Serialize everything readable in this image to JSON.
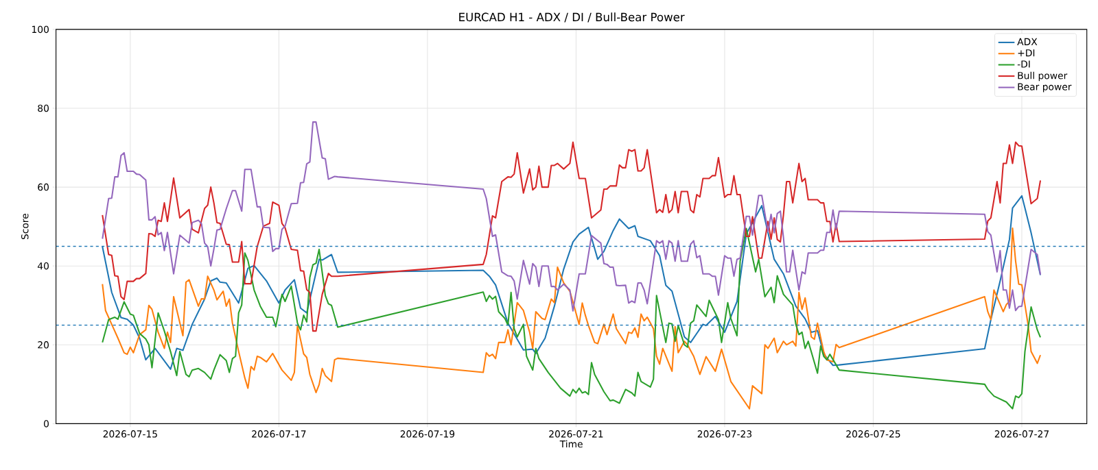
{
  "chart_data": {
    "type": "line",
    "title": "EURCAD H1 - ADX / DI / Bull-Bear Power",
    "xlabel": "Time",
    "ylabel": "Score",
    "xlim": [
      "2026-07-14T00:00",
      "2026-07-27T21:00"
    ],
    "xticks": [
      "2026-07-15",
      "2026-07-17",
      "2026-07-19",
      "2026-07-21",
      "2026-07-23",
      "2026-07-25",
      "2026-07-27"
    ],
    "ylim": [
      0,
      100
    ],
    "yticks": [
      0,
      20,
      40,
      60,
      80,
      100
    ],
    "grid": true,
    "legend": "top right",
    "ref_lines": [
      {
        "axis": "y",
        "value": 45,
        "color": "#1f77b4",
        "line_style": "dashed"
      },
      {
        "axis": "y",
        "value": 25,
        "color": "#1f77b4",
        "line_style": "dashed"
      }
    ],
    "series": [
      {
        "name": "ADX",
        "color": "#1f77b4",
        "x": [
          "2026-07-14T15:00",
          "2026-07-14T18:00",
          "2026-07-14T21:00",
          "2026-07-14T23:00",
          "2026-07-15T01:00",
          "2026-07-15T03:00",
          "2026-07-15T05:00",
          "2026-07-15T08:00",
          "2026-07-15T13:00",
          "2026-07-15T15:00",
          "2026-07-15T17:00",
          "2026-07-15T20:00",
          "2026-07-16T00:00",
          "2026-07-16T02:00",
          "2026-07-16T04:00",
          "2026-07-16T05:00",
          "2026-07-16T07:00",
          "2026-07-16T11:00",
          "2026-07-16T14:00",
          "2026-07-16T16:00",
          "2026-07-16T20:00",
          "2026-07-17T00:00",
          "2026-07-17T02:00",
          "2026-07-17T05:00",
          "2026-07-17T07:00",
          "2026-07-17T09:00",
          "2026-07-17T13:00",
          "2026-07-17T14:00",
          "2026-07-17T17:00",
          "2026-07-17T19:00",
          "2026-07-19T18:00",
          "2026-07-19T20:00",
          "2026-07-19T22:00",
          "2026-07-20T02:00",
          "2026-07-20T07:00",
          "2026-07-20T10:00",
          "2026-07-20T11:00",
          "2026-07-20T14:00",
          "2026-07-20T17:00",
          "2026-07-20T20:00",
          "2026-07-20T23:00",
          "2026-07-21T01:00",
          "2026-07-21T04:00",
          "2026-07-21T07:00",
          "2026-07-21T09:00",
          "2026-07-21T12:00",
          "2026-07-21T14:00",
          "2026-07-21T17:00",
          "2026-07-21T19:00",
          "2026-07-21T20:00",
          "2026-07-22T00:00",
          "2026-07-22T03:00",
          "2026-07-22T05:00",
          "2026-07-22T07:00",
          "2026-07-22T11:00",
          "2026-07-22T13:00",
          "2026-07-22T17:00",
          "2026-07-22T18:00",
          "2026-07-22T21:00",
          "2026-07-23T00:00",
          "2026-07-23T04:00",
          "2026-07-23T07:00",
          "2026-07-23T12:00",
          "2026-07-23T16:00",
          "2026-07-23T19:00",
          "2026-07-23T23:00",
          "2026-07-24T02:00",
          "2026-07-24T04:00",
          "2026-07-24T06:00",
          "2026-07-24T08:00",
          "2026-07-24T11:00",
          "2026-07-24T13:00",
          "2026-07-26T12:00",
          "2026-07-26T14:00",
          "2026-07-26T17:00",
          "2026-07-26T20:00",
          "2026-07-26T21:00",
          "2026-07-27T00:00",
          "2026-07-27T01:00",
          "2026-07-27T03:00",
          "2026-07-27T06:00"
        ],
        "values": [
          44.9,
          33.3,
          26.9,
          26.5,
          25.0,
          21.7,
          16.2,
          19.1,
          13.8,
          19.1,
          18.6,
          25.2,
          31.6,
          36.2,
          36.9,
          35.9,
          35.7,
          30.6,
          39.4,
          40.1,
          36.2,
          30.6,
          33.9,
          36.5,
          29.3,
          28.1,
          41.7,
          41.5,
          42.9,
          38.4,
          38.9,
          37.4,
          35.2,
          25.5,
          18.7,
          18.9,
          17.8,
          21.7,
          29.8,
          39.2,
          46.1,
          48.1,
          49.8,
          41.7,
          43.7,
          49.0,
          51.9,
          49.5,
          50.2,
          47.5,
          46.4,
          42.6,
          35.1,
          33.6,
          22.0,
          20.6,
          25.2,
          24.9,
          27.2,
          23.2,
          31.0,
          48.1,
          55.3,
          41.7,
          38.0,
          29.8,
          26.6,
          23.2,
          23.6,
          17.7,
          14.8,
          14.9,
          19.0,
          26.4,
          36.2,
          46.7,
          54.7,
          57.8,
          54.7,
          48.4,
          37.7
        ]
      },
      {
        "name": "+DI",
        "color": "#ff7f0e",
        "x": [
          "2026-07-14T15:00",
          "2026-07-14T16:00",
          "2026-07-14T18:00",
          "2026-07-14T20:00",
          "2026-07-14T22:00",
          "2026-07-14T23:00",
          "2026-07-15T00:00",
          "2026-07-15T01:00",
          "2026-07-15T03:00",
          "2026-07-15T05:00",
          "2026-07-15T06:00",
          "2026-07-15T07:00",
          "2026-07-15T09:00",
          "2026-07-15T11:00",
          "2026-07-15T12:00",
          "2026-07-15T13:00",
          "2026-07-15T14:00",
          "2026-07-15T17:00",
          "2026-07-15T18:00",
          "2026-07-15T19:00",
          "2026-07-15T22:00",
          "2026-07-15T23:00",
          "2026-07-16T00:00",
          "2026-07-16T01:00",
          "2026-07-16T03:00",
          "2026-07-16T04:00",
          "2026-07-16T06:00",
          "2026-07-16T07:00",
          "2026-07-16T08:00",
          "2026-07-16T09:00",
          "2026-07-16T11:00",
          "2026-07-16T13:00",
          "2026-07-16T14:00",
          "2026-07-16T15:00",
          "2026-07-16T16:00",
          "2026-07-16T17:00",
          "2026-07-16T18:00",
          "2026-07-16T20:00",
          "2026-07-16T22:00",
          "2026-07-17T01:00",
          "2026-07-17T04:00",
          "2026-07-17T05:00",
          "2026-07-17T06:00",
          "2026-07-17T08:00",
          "2026-07-17T09:00",
          "2026-07-17T10:00",
          "2026-07-17T12:00",
          "2026-07-17T13:00",
          "2026-07-17T14:00",
          "2026-07-17T15:00",
          "2026-07-17T17:00",
          "2026-07-17T18:00",
          "2026-07-17T19:00",
          "2026-07-19T18:00",
          "2026-07-19T19:00",
          "2026-07-19T20:00",
          "2026-07-19T21:00",
          "2026-07-19T22:00",
          "2026-07-19T23:00",
          "2026-07-20T01:00",
          "2026-07-20T02:00",
          "2026-07-20T03:00",
          "2026-07-20T05:00",
          "2026-07-20T07:00",
          "2026-07-20T09:00",
          "2026-07-20T10:00",
          "2026-07-20T11:00",
          "2026-07-20T13:00",
          "2026-07-20T14:00",
          "2026-07-20T16:00",
          "2026-07-20T17:00",
          "2026-07-20T18:00",
          "2026-07-20T20:00",
          "2026-07-20T22:00",
          "2026-07-21T01:00",
          "2026-07-21T02:00",
          "2026-07-21T03:00",
          "2026-07-21T04:00",
          "2026-07-21T06:00",
          "2026-07-21T07:00",
          "2026-07-21T09:00",
          "2026-07-21T10:00",
          "2026-07-21T12:00",
          "2026-07-21T13:00",
          "2026-07-21T16:00",
          "2026-07-21T17:00",
          "2026-07-21T18:00",
          "2026-07-21T19:00",
          "2026-07-21T20:00",
          "2026-07-21T21:00",
          "2026-07-21T22:00",
          "2026-07-21T23:00",
          "2026-07-22T01:00",
          "2026-07-22T02:00",
          "2026-07-22T03:00",
          "2026-07-22T04:00",
          "2026-07-22T07:00",
          "2026-07-22T08:00",
          "2026-07-22T09:00",
          "2026-07-22T11:00",
          "2026-07-22T12:00",
          "2026-07-22T14:00",
          "2026-07-22T16:00",
          "2026-07-22T18:00",
          "2026-07-22T21:00",
          "2026-07-22T23:00",
          "2026-07-23T02:00",
          "2026-07-23T04:00",
          "2026-07-23T08:00",
          "2026-07-23T09:00",
          "2026-07-23T12:00",
          "2026-07-23T13:00",
          "2026-07-23T14:00",
          "2026-07-23T16:00",
          "2026-07-23T17:00",
          "2026-07-23T19:00",
          "2026-07-23T20:00",
          "2026-07-23T22:00",
          "2026-07-23T23:00",
          "2026-07-24T00:00",
          "2026-07-24T01:00",
          "2026-07-24T02:00",
          "2026-07-24T04:00",
          "2026-07-24T05:00",
          "2026-07-24T06:00",
          "2026-07-24T08:00",
          "2026-07-24T09:00",
          "2026-07-24T11:00",
          "2026-07-24T12:00",
          "2026-07-24T13:00",
          "2026-07-26T12:00",
          "2026-07-26T13:00",
          "2026-07-26T14:00",
          "2026-07-26T15:00",
          "2026-07-26T18:00",
          "2026-07-26T19:00",
          "2026-07-26T20:00",
          "2026-07-26T21:00",
          "2026-07-26T22:00",
          "2026-07-26T23:00",
          "2026-07-27T00:00",
          "2026-07-27T02:00",
          "2026-07-27T03:00",
          "2026-07-27T05:00",
          "2026-07-27T06:00"
        ],
        "values": [
          35.4,
          28.7,
          25.2,
          21.7,
          18.0,
          17.6,
          19.4,
          18.0,
          22.6,
          23.8,
          30.0,
          29.0,
          23.2,
          19.1,
          23.2,
          20.6,
          32.2,
          22.3,
          35.9,
          36.5,
          29.8,
          31.7,
          31.6,
          37.4,
          33.9,
          31.4,
          33.6,
          29.8,
          31.6,
          25.5,
          18.3,
          11.6,
          9.0,
          14.5,
          13.6,
          17.1,
          16.8,
          15.7,
          17.8,
          13.6,
          11.0,
          13.0,
          24.9,
          17.7,
          16.8,
          12.5,
          7.9,
          9.9,
          14.0,
          12.2,
          10.7,
          16.2,
          16.6,
          13.0,
          18.0,
          17.1,
          17.6,
          16.5,
          20.6,
          20.6,
          23.8,
          20.0,
          30.7,
          28.7,
          23.2,
          19.1,
          28.4,
          26.7,
          26.4,
          31.6,
          30.7,
          39.7,
          35.7,
          33.6,
          25.2,
          30.6,
          27.5,
          24.9,
          20.6,
          20.3,
          25.2,
          22.6,
          27.8,
          24.1,
          20.3,
          23.2,
          22.9,
          24.3,
          21.9,
          27.8,
          26.1,
          27.0,
          24.1,
          17.1,
          15.1,
          19.1,
          13.3,
          24.6,
          18.0,
          20.9,
          20.0,
          17.1,
          12.5,
          17.0,
          13.3,
          18.9,
          10.7,
          8.4,
          3.8,
          9.6,
          7.6,
          20.0,
          19.1,
          21.7,
          18.0,
          20.9,
          20.0,
          20.9,
          19.7,
          33.3,
          29.0,
          31.9,
          22.0,
          21.4,
          25.5,
          18.3,
          16.2,
          15.7,
          20.1,
          19.3,
          32.2,
          28.4,
          26.4,
          33.9,
          28.4,
          30.2,
          31.0,
          49.6,
          41.2,
          35.4,
          35.2,
          25.2,
          18.3,
          15.3,
          17.4
        ]
      },
      {
        "name": "-DI",
        "color": "#2ca02c",
        "x": [
          "2026-07-14T15:00",
          "2026-07-14T17:00",
          "2026-07-14T19:00",
          "2026-07-14T20:00",
          "2026-07-14T22:00",
          "2026-07-15T00:00",
          "2026-07-15T01:00",
          "2026-07-15T03:00",
          "2026-07-15T05:00",
          "2026-07-15T06:00",
          "2026-07-15T07:00",
          "2026-07-15T09:00",
          "2026-07-15T11:00",
          "2026-07-15T13:00",
          "2026-07-15T15:00",
          "2026-07-15T16:00",
          "2026-07-15T18:00",
          "2026-07-15T19:00",
          "2026-07-15T20:00",
          "2026-07-15T22:00",
          "2026-07-16T00:00",
          "2026-07-16T02:00",
          "2026-07-16T03:00",
          "2026-07-16T05:00",
          "2026-07-16T07:00",
          "2026-07-16T08:00",
          "2026-07-16T09:00",
          "2026-07-16T10:00",
          "2026-07-16T11:00",
          "2026-07-16T12:00",
          "2026-07-16T13:00",
          "2026-07-16T14:00",
          "2026-07-16T16:00",
          "2026-07-16T18:00",
          "2026-07-16T20:00",
          "2026-07-16T22:00",
          "2026-07-16T23:00",
          "2026-07-17T01:00",
          "2026-07-17T02:00",
          "2026-07-17T04:00",
          "2026-07-17T06:00",
          "2026-07-17T07:00",
          "2026-07-17T08:00",
          "2026-07-17T09:00",
          "2026-07-17T10:00",
          "2026-07-17T11:00",
          "2026-07-17T12:00",
          "2026-07-17T13:00",
          "2026-07-17T15:00",
          "2026-07-17T16:00",
          "2026-07-17T17:00",
          "2026-07-17T19:00",
          "2026-07-19T18:00",
          "2026-07-19T19:00",
          "2026-07-19T20:00",
          "2026-07-19T21:00",
          "2026-07-19T22:00",
          "2026-07-19T23:00",
          "2026-07-20T01:00",
          "2026-07-20T02:00",
          "2026-07-20T03:00",
          "2026-07-20T04:00",
          "2026-07-20T05:00",
          "2026-07-20T07:00",
          "2026-07-20T08:00",
          "2026-07-20T10:00",
          "2026-07-20T11:00",
          "2026-07-20T12:00",
          "2026-07-20T15:00",
          "2026-07-20T19:00",
          "2026-07-20T22:00",
          "2026-07-20T23:00",
          "2026-07-21T00:00",
          "2026-07-21T01:00",
          "2026-07-21T02:00",
          "2026-07-21T03:00",
          "2026-07-21T04:00",
          "2026-07-21T05:00",
          "2026-07-21T06:00",
          "2026-07-21T09:00",
          "2026-07-21T11:00",
          "2026-07-21T12:00",
          "2026-07-21T14:00",
          "2026-07-21T16:00",
          "2026-07-21T18:00",
          "2026-07-21T19:00",
          "2026-07-21T20:00",
          "2026-07-21T21:00",
          "2026-07-22T00:00",
          "2026-07-22T01:00",
          "2026-07-22T02:00",
          "2026-07-22T05:00",
          "2026-07-22T06:00",
          "2026-07-22T07:00",
          "2026-07-22T08:00",
          "2026-07-22T09:00",
          "2026-07-22T11:00",
          "2026-07-22T12:00",
          "2026-07-22T13:00",
          "2026-07-22T14:00",
          "2026-07-22T15:00",
          "2026-07-22T18:00",
          "2026-07-22T19:00",
          "2026-07-22T22:00",
          "2026-07-22T23:00",
          "2026-07-23T01:00",
          "2026-07-23T02:00",
          "2026-07-23T04:00",
          "2026-07-23T05:00",
          "2026-07-23T07:00",
          "2026-07-23T10:00",
          "2026-07-23T11:00",
          "2026-07-23T13:00",
          "2026-07-23T15:00",
          "2026-07-23T16:00",
          "2026-07-23T17:00",
          "2026-07-23T19:00",
          "2026-07-23T22:00",
          "2026-07-23T23:00",
          "2026-07-24T00:00",
          "2026-07-24T01:00",
          "2026-07-24T02:00",
          "2026-07-24T03:00",
          "2026-07-24T06:00",
          "2026-07-24T07:00",
          "2026-07-24T08:00",
          "2026-07-24T09:00",
          "2026-07-24T10:00",
          "2026-07-24T13:00",
          "2026-07-26T12:00",
          "2026-07-26T13:00",
          "2026-07-26T15:00",
          "2026-07-26T19:00",
          "2026-07-26T21:00",
          "2026-07-26T22:00",
          "2026-07-26T23:00",
          "2026-07-27T00:00",
          "2026-07-27T01:00",
          "2026-07-27T03:00",
          "2026-07-27T05:00",
          "2026-07-27T06:00"
        ],
        "values": [
          20.6,
          26.4,
          27.0,
          26.5,
          30.9,
          27.8,
          27.5,
          22.9,
          21.5,
          20.0,
          14.2,
          28.1,
          23.5,
          18.3,
          12.2,
          18.3,
          12.5,
          11.9,
          13.6,
          14.0,
          13.0,
          11.3,
          13.6,
          17.5,
          16.0,
          13.0,
          16.5,
          17.1,
          28.1,
          30.1,
          43.3,
          41.4,
          33.9,
          29.8,
          27.0,
          27.0,
          24.6,
          32.8,
          31.0,
          34.9,
          25.5,
          23.8,
          27.5,
          25.8,
          37.1,
          40.3,
          40.7,
          44.2,
          32.5,
          30.4,
          30.0,
          24.5,
          33.4,
          31.0,
          32.5,
          31.6,
          32.3,
          28.4,
          26.7,
          25.0,
          33.3,
          24.1,
          22.0,
          25.2,
          17.1,
          13.6,
          19.1,
          16.5,
          13.0,
          9.0,
          7.0,
          8.7,
          7.8,
          9.0,
          7.8,
          8.1,
          7.4,
          15.5,
          12.5,
          8.1,
          5.8,
          6.0,
          5.2,
          8.7,
          7.8,
          7.0,
          13.0,
          10.7,
          9.3,
          11.3,
          32.5,
          20.6,
          25.5,
          25.3,
          20.9,
          24.9,
          20.0,
          19.4,
          25.5,
          26.1,
          30.1,
          27.2,
          31.3,
          26.4,
          20.6,
          30.7,
          26.7,
          22.3,
          41.2,
          49.5,
          38.5,
          41.7,
          32.2,
          34.6,
          30.7,
          37.5,
          32.8,
          30.1,
          25.2,
          22.6,
          23.2,
          19.1,
          20.9,
          12.8,
          19.7,
          17.1,
          16.2,
          17.6,
          13.6,
          10.0,
          8.7,
          7.0,
          5.5,
          3.8,
          7.0,
          6.6,
          7.6,
          18.3,
          29.6,
          23.8,
          21.9
        ]
      },
      {
        "name": "Bull power",
        "color": "#d62728",
        "x": [
          "2026-07-14T15:00",
          "2026-07-14T17:00",
          "2026-07-14T18:00",
          "2026-07-14T19:00",
          "2026-07-14T20:00",
          "2026-07-14T21:00",
          "2026-07-14T22:00",
          "2026-07-14T23:00",
          "2026-07-15T01:00",
          "2026-07-15T02:00",
          "2026-07-15T03:00",
          "2026-07-15T05:00",
          "2026-07-15T06:00",
          "2026-07-15T07:00",
          "2026-07-15T08:00",
          "2026-07-15T09:00",
          "2026-07-15T10:00",
          "2026-07-15T11:00",
          "2026-07-15T12:00",
          "2026-07-15T14:00",
          "2026-07-15T16:00",
          "2026-07-15T19:00",
          "2026-07-15T20:00",
          "2026-07-15T22:00",
          "2026-07-16T00:00",
          "2026-07-16T01:00",
          "2026-07-16T02:00",
          "2026-07-16T03:00",
          "2026-07-16T04:00",
          "2026-07-16T05:00",
          "2026-07-16T07:00",
          "2026-07-16T08:00",
          "2026-07-16T09:00",
          "2026-07-16T11:00",
          "2026-07-16T12:00",
          "2026-07-16T13:00",
          "2026-07-16T15:00",
          "2026-07-16T17:00",
          "2026-07-16T19:00",
          "2026-07-16T21:00",
          "2026-07-16T22:00",
          "2026-07-17T00:00",
          "2026-07-17T01:00",
          "2026-07-17T02:00",
          "2026-07-17T04:00",
          "2026-07-17T06:00",
          "2026-07-17T07:00",
          "2026-07-17T08:00",
          "2026-07-17T09:00",
          "2026-07-17T10:00",
          "2026-07-17T11:00",
          "2026-07-17T12:00",
          "2026-07-17T14:00",
          "2026-07-17T16:00",
          "2026-07-17T17:00",
          "2026-07-17T19:00",
          "2026-07-19T18:00",
          "2026-07-19T19:00",
          "2026-07-19T21:00",
          "2026-07-19T22:00",
          "2026-07-20T00:00",
          "2026-07-20T02:00",
          "2026-07-20T03:00",
          "2026-07-20T04:00",
          "2026-07-20T05:00",
          "2026-07-20T07:00",
          "2026-07-20T09:00",
          "2026-07-20T10:00",
          "2026-07-20T11:00",
          "2026-07-20T12:00",
          "2026-07-20T13:00",
          "2026-07-20T15:00",
          "2026-07-20T16:00",
          "2026-07-20T17:00",
          "2026-07-20T18:00",
          "2026-07-20T20:00",
          "2026-07-20T22:00",
          "2026-07-20T23:00",
          "2026-07-21T01:00",
          "2026-07-21T03:00",
          "2026-07-21T05:00",
          "2026-07-21T08:00",
          "2026-07-21T09:00",
          "2026-07-21T10:00",
          "2026-07-21T11:00",
          "2026-07-21T13:00",
          "2026-07-21T14:00",
          "2026-07-21T15:00",
          "2026-07-21T16:00",
          "2026-07-21T17:00",
          "2026-07-21T18:00",
          "2026-07-21T19:00",
          "2026-07-21T20:00",
          "2026-07-21T21:00",
          "2026-07-21T22:00",
          "2026-07-21T23:00",
          "2026-07-22T02:00",
          "2026-07-22T03:00",
          "2026-07-22T04:00",
          "2026-07-22T05:00",
          "2026-07-22T06:00",
          "2026-07-22T07:00",
          "2026-07-22T08:00",
          "2026-07-22T09:00",
          "2026-07-22T10:00",
          "2026-07-22T12:00",
          "2026-07-22T13:00",
          "2026-07-22T14:00",
          "2026-07-22T15:00",
          "2026-07-22T16:00",
          "2026-07-22T17:00",
          "2026-07-22T19:00",
          "2026-07-22T20:00",
          "2026-07-22T21:00",
          "2026-07-22T22:00",
          "2026-07-23T00:00",
          "2026-07-23T01:00",
          "2026-07-23T02:00",
          "2026-07-23T03:00",
          "2026-07-23T04:00",
          "2026-07-23T05:00",
          "2026-07-23T07:00",
          "2026-07-23T08:00",
          "2026-07-23T09:00",
          "2026-07-23T11:00",
          "2026-07-23T12:00",
          "2026-07-23T14:00",
          "2026-07-23T15:00",
          "2026-07-23T16:00",
          "2026-07-23T17:00",
          "2026-07-23T18:00",
          "2026-07-23T19:00",
          "2026-07-23T20:00",
          "2026-07-23T21:00",
          "2026-07-23T22:00",
          "2026-07-24T00:00",
          "2026-07-24T01:00",
          "2026-07-24T02:00",
          "2026-07-24T03:00",
          "2026-07-24T06:00",
          "2026-07-24T07:00",
          "2026-07-24T08:00",
          "2026-07-24T09:00",
          "2026-07-24T10:00",
          "2026-07-24T11:00",
          "2026-07-24T12:00",
          "2026-07-24T13:00",
          "2026-07-26T12:00",
          "2026-07-26T13:00",
          "2026-07-26T14:00",
          "2026-07-26T16:00",
          "2026-07-26T17:00",
          "2026-07-26T18:00",
          "2026-07-26T19:00",
          "2026-07-26T20:00",
          "2026-07-26T21:00",
          "2026-07-26T22:00",
          "2026-07-26T23:00",
          "2026-07-27T00:00",
          "2026-07-27T03:00",
          "2026-07-27T05:00",
          "2026-07-27T06:00"
        ],
        "values": [
          52.9,
          42.9,
          42.7,
          37.5,
          37.4,
          32.2,
          31.5,
          36.1,
          36.1,
          36.8,
          36.8,
          38.1,
          48.2,
          48.1,
          47.5,
          51.6,
          51.3,
          56.0,
          51.3,
          62.3,
          52.2,
          54.3,
          49.3,
          48.4,
          54.6,
          55.4,
          60.0,
          56.0,
          51.0,
          50.8,
          45.5,
          45.4,
          41.0,
          41.0,
          46.2,
          35.5,
          35.5,
          44.9,
          50.1,
          50.8,
          56.2,
          55.4,
          50.8,
          49.7,
          44.2,
          44.0,
          38.8,
          38.7,
          34.0,
          33.3,
          23.5,
          23.5,
          32.8,
          38.1,
          37.4,
          37.4,
          40.4,
          42.9,
          52.7,
          52.2,
          61.4,
          62.6,
          62.5,
          63.3,
          68.7,
          58.5,
          64.6,
          59.3,
          60.0,
          65.3,
          60.0,
          60.0,
          65.5,
          65.5,
          66.0,
          64.6,
          66.0,
          71.4,
          62.2,
          62.2,
          52.2,
          54.2,
          59.5,
          59.5,
          60.3,
          60.3,
          65.6,
          64.9,
          64.9,
          69.5,
          69.1,
          69.5,
          64.1,
          64.1,
          64.9,
          69.5,
          53.5,
          54.3,
          53.6,
          58.1,
          53.5,
          54.3,
          58.9,
          53.5,
          58.9,
          58.9,
          54.2,
          53.5,
          58.1,
          57.5,
          62.2,
          62.2,
          62.9,
          62.9,
          67.5,
          57.4,
          58.1,
          58.1,
          62.9,
          58.1,
          58.1,
          47.5,
          47.5,
          52.5,
          42.0,
          42.0,
          51.3,
          46.8,
          52.2,
          46.7,
          46.1,
          53.0,
          61.4,
          61.4,
          56.0,
          66.0,
          61.4,
          62.2,
          56.8,
          56.8,
          56.0,
          56.0,
          51.3,
          51.3,
          46.1,
          50.7,
          46.2,
          46.8,
          51.4,
          52.2,
          61.4,
          56.0,
          66.0,
          66.0,
          70.7,
          66.0,
          71.4,
          70.5,
          70.4,
          55.8,
          57.1,
          61.7
        ]
      },
      {
        "name": "Bear power",
        "color": "#9467bd",
        "x": [
          "2026-07-14T15:00",
          "2026-07-14T17:00",
          "2026-07-14T18:00",
          "2026-07-14T19:00",
          "2026-07-14T20:00",
          "2026-07-14T21:00",
          "2026-07-14T22:00",
          "2026-07-14T23:00",
          "2026-07-15T01:00",
          "2026-07-15T02:00",
          "2026-07-15T03:00",
          "2026-07-15T05:00",
          "2026-07-15T06:00",
          "2026-07-15T07:00",
          "2026-07-15T08:00",
          "2026-07-15T09:00",
          "2026-07-15T10:00",
          "2026-07-15T11:00",
          "2026-07-15T12:00",
          "2026-07-15T14:00",
          "2026-07-15T16:00",
          "2026-07-15T19:00",
          "2026-07-15T20:00",
          "2026-07-15T22:00",
          "2026-07-15T23:00",
          "2026-07-16T00:00",
          "2026-07-16T01:00",
          "2026-07-16T02:00",
          "2026-07-16T03:00",
          "2026-07-16T04:00",
          "2026-07-16T05:00",
          "2026-07-16T07:00",
          "2026-07-16T09:00",
          "2026-07-16T10:00",
          "2026-07-16T12:00",
          "2026-07-16T13:00",
          "2026-07-16T15:00",
          "2026-07-16T17:00",
          "2026-07-16T18:00",
          "2026-07-16T19:00",
          "2026-07-16T21:00",
          "2026-07-16T22:00",
          "2026-07-16T23:00",
          "2026-07-17T00:00",
          "2026-07-17T01:00",
          "2026-07-17T02:00",
          "2026-07-17T04:00",
          "2026-07-17T06:00",
          "2026-07-17T07:00",
          "2026-07-17T08:00",
          "2026-07-17T09:00",
          "2026-07-17T10:00",
          "2026-07-17T11:00",
          "2026-07-17T12:00",
          "2026-07-17T14:00",
          "2026-07-17T15:00",
          "2026-07-17T16:00",
          "2026-07-17T18:00",
          "2026-07-17T19:00",
          "2026-07-19T18:00",
          "2026-07-19T19:00",
          "2026-07-19T21:00",
          "2026-07-19T22:00",
          "2026-07-20T00:00",
          "2026-07-20T02:00",
          "2026-07-20T03:00",
          "2026-07-20T04:00",
          "2026-07-20T05:00",
          "2026-07-20T07:00",
          "2026-07-20T09:00",
          "2026-07-20T10:00",
          "2026-07-20T11:00",
          "2026-07-20T12:00",
          "2026-07-20T13:00",
          "2026-07-20T15:00",
          "2026-07-20T16:00",
          "2026-07-20T17:00",
          "2026-07-20T18:00",
          "2026-07-20T20:00",
          "2026-07-20T22:00",
          "2026-07-20T23:00",
          "2026-07-21T01:00",
          "2026-07-21T03:00",
          "2026-07-21T05:00",
          "2026-07-21T08:00",
          "2026-07-21T09:00",
          "2026-07-21T10:00",
          "2026-07-21T11:00",
          "2026-07-21T12:00",
          "2026-07-21T13:00",
          "2026-07-21T14:00",
          "2026-07-21T16:00",
          "2026-07-21T17:00",
          "2026-07-21T18:00",
          "2026-07-21T19:00",
          "2026-07-21T20:00",
          "2026-07-21T21:00",
          "2026-07-21T22:00",
          "2026-07-21T23:00",
          "2026-07-22T02:00",
          "2026-07-22T03:00",
          "2026-07-22T04:00",
          "2026-07-22T05:00",
          "2026-07-22T06:00",
          "2026-07-22T07:00",
          "2026-07-22T08:00",
          "2026-07-22T09:00",
          "2026-07-22T10:00",
          "2026-07-22T12:00",
          "2026-07-22T13:00",
          "2026-07-22T14:00",
          "2026-07-22T15:00",
          "2026-07-22T16:00",
          "2026-07-22T17:00",
          "2026-07-22T19:00",
          "2026-07-22T20:00",
          "2026-07-22T21:00",
          "2026-07-22T22:00",
          "2026-07-23T00:00",
          "2026-07-23T01:00",
          "2026-07-23T02:00",
          "2026-07-23T03:00",
          "2026-07-23T04:00",
          "2026-07-23T05:00",
          "2026-07-23T07:00",
          "2026-07-23T08:00",
          "2026-07-23T09:00",
          "2026-07-23T11:00",
          "2026-07-23T12:00",
          "2026-07-23T14:00",
          "2026-07-23T15:00",
          "2026-07-23T16:00",
          "2026-07-23T17:00",
          "2026-07-23T18:00",
          "2026-07-23T19:00",
          "2026-07-23T20:00",
          "2026-07-23T21:00",
          "2026-07-23T22:00",
          "2026-07-24T00:00",
          "2026-07-24T01:00",
          "2026-07-24T02:00",
          "2026-07-24T03:00",
          "2026-07-24T06:00",
          "2026-07-24T07:00",
          "2026-07-24T08:00",
          "2026-07-24T09:00",
          "2026-07-24T10:00",
          "2026-07-24T11:00",
          "2026-07-24T12:00",
          "2026-07-24T13:00",
          "2026-07-26T12:00",
          "2026-07-26T13:00",
          "2026-07-26T14:00",
          "2026-07-26T16:00",
          "2026-07-26T17:00",
          "2026-07-26T18:00",
          "2026-07-26T19:00",
          "2026-07-26T20:00",
          "2026-07-26T21:00",
          "2026-07-26T22:00",
          "2026-07-26T23:00",
          "2026-07-27T00:00",
          "2026-07-27T03:00",
          "2026-07-27T05:00",
          "2026-07-27T06:00"
        ],
        "values": [
          46.9,
          57.1,
          57.2,
          62.6,
          62.6,
          68.0,
          68.7,
          64.0,
          64.0,
          63.3,
          63.2,
          61.8,
          51.7,
          51.7,
          52.5,
          47.9,
          48.5,
          43.9,
          48.5,
          38.0,
          47.8,
          45.8,
          51.0,
          51.6,
          50.7,
          45.8,
          44.9,
          40.0,
          44.3,
          49.1,
          49.3,
          54.5,
          59.1,
          59.1,
          53.9,
          64.5,
          64.5,
          55.0,
          55.0,
          49.8,
          49.7,
          43.7,
          44.4,
          44.4,
          49.3,
          50.1,
          55.8,
          55.9,
          61.1,
          61.2,
          65.9,
          66.4,
          76.5,
          76.5,
          67.4,
          67.2,
          62.0,
          62.7,
          62.6,
          59.5,
          57.1,
          47.5,
          47.9,
          38.5,
          37.5,
          37.4,
          36.2,
          31.6,
          41.4,
          35.4,
          40.6,
          39.7,
          34.8,
          40.0,
          40.0,
          34.8,
          34.8,
          33.9,
          35.4,
          33.9,
          28.6,
          38.0,
          38.0,
          47.7,
          45.8,
          40.6,
          40.4,
          39.7,
          39.7,
          35.1,
          35.0,
          35.1,
          30.6,
          31.1,
          30.7,
          35.7,
          35.7,
          33.9,
          30.4,
          46.4,
          45.8,
          46.4,
          41.7,
          46.4,
          45.8,
          41.2,
          46.4,
          41.2,
          41.2,
          45.5,
          46.4,
          42.1,
          42.6,
          38.0,
          38.0,
          37.4,
          37.4,
          32.6,
          42.6,
          42.0,
          42.0,
          37.4,
          41.7,
          42.0,
          52.6,
          52.6,
          47.8,
          57.9,
          57.9,
          48.7,
          53.1,
          48.4,
          53.3,
          53.9,
          47.2,
          38.5,
          38.5,
          44.0,
          33.9,
          38.5,
          38.0,
          43.3,
          43.3,
          44.0,
          44.0,
          48.5,
          48.5,
          54.2,
          49.3,
          53.9,
          53.1,
          48.7,
          47.8,
          38.5,
          43.9,
          33.9,
          33.9,
          29.3,
          33.9,
          28.7,
          29.7,
          29.8,
          44.2,
          42.9,
          37.8
        ]
      }
    ]
  }
}
